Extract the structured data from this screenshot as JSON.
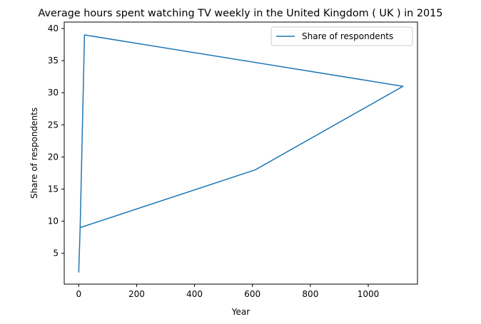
{
  "chart_data": {
    "type": "line",
    "title": "Average hours spent watching TV weekly in the United Kingdom ( UK ) in 2015",
    "xlabel": "Year",
    "ylabel": "Share of respondents",
    "xlim": [
      -50,
      1170
    ],
    "ylim": [
      0.2,
      41
    ],
    "xticks": [
      0,
      200,
      400,
      600,
      800,
      1000
    ],
    "yticks": [
      5,
      10,
      15,
      20,
      25,
      30,
      35,
      40
    ],
    "grid": false,
    "legend_position": "upper right",
    "series": [
      {
        "name": "Share of respondents",
        "color": "#1f77b4",
        "x": [
          0,
          5,
          20,
          1120,
          610,
          5
        ],
        "y": [
          2,
          9,
          39,
          31,
          18,
          9
        ]
      }
    ]
  }
}
